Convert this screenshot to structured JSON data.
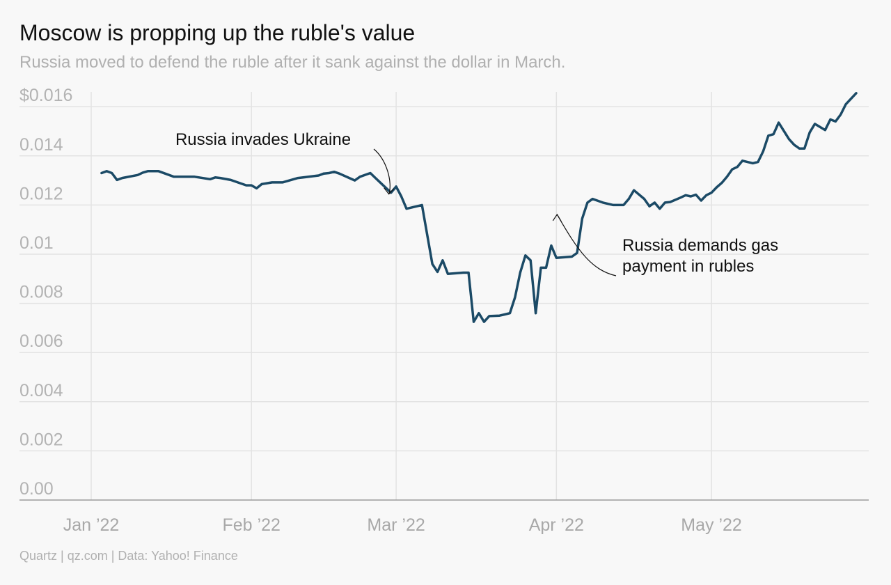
{
  "title": "Moscow is propping up the ruble's value",
  "subtitle": "Russia moved to defend the ruble after it sank against the dollar in March.",
  "footer": "Quartz | qz.com | Data: Yahoo! Finance",
  "colors": {
    "line": "#1b4a66",
    "grid": "#e3e3e3",
    "axis": "#9a9a9a",
    "background": "#f8f8f8"
  },
  "chart_data": {
    "type": "line",
    "title": "Moscow is propping up the ruble's value",
    "subtitle": "Russia moved to defend the ruble after it sank against the dollar in March.",
    "xlabel": "",
    "ylabel": "",
    "ylim": [
      0,
      0.0166
    ],
    "xlim": [
      "2021-12-31",
      "2022-05-30"
    ],
    "grid": true,
    "yticks": [
      {
        "value": 0,
        "label": "0.00"
      },
      {
        "value": 0.002,
        "label": "0.002"
      },
      {
        "value": 0.004,
        "label": "0.004"
      },
      {
        "value": 0.006,
        "label": "0.006"
      },
      {
        "value": 0.008,
        "label": "0.008"
      },
      {
        "value": 0.01,
        "label": "0.01"
      },
      {
        "value": 0.012,
        "label": "0.012"
      },
      {
        "value": 0.014,
        "label": "0.014"
      },
      {
        "value": 0.016,
        "label": "$0.016"
      }
    ],
    "xticks": [
      {
        "date": "2022-01-01",
        "label": "Jan ’22"
      },
      {
        "date": "2022-02-01",
        "label": "Feb ’22"
      },
      {
        "date": "2022-03-01",
        "label": "Mar ’22"
      },
      {
        "date": "2022-04-01",
        "label": "Apr ’22"
      },
      {
        "date": "2022-05-01",
        "label": "May ’22"
      }
    ],
    "series": [
      {
        "values": [
          [
            "2022-01-03",
            0.0133
          ],
          [
            "2022-01-04",
            0.01338
          ],
          [
            "2022-01-05",
            0.0133
          ],
          [
            "2022-01-06",
            0.01302
          ],
          [
            "2022-01-07",
            0.0131
          ],
          [
            "2022-01-10",
            0.01322
          ],
          [
            "2022-01-11",
            0.01332
          ],
          [
            "2022-01-12",
            0.01338
          ],
          [
            "2022-01-13",
            0.01338
          ],
          [
            "2022-01-14",
            0.01338
          ],
          [
            "2022-01-17",
            0.01315
          ],
          [
            "2022-01-19",
            0.01315
          ],
          [
            "2022-01-21",
            0.01315
          ],
          [
            "2022-01-24",
            0.01305
          ],
          [
            "2022-01-25",
            0.01312
          ],
          [
            "2022-01-26",
            0.0131
          ],
          [
            "2022-01-28",
            0.01302
          ],
          [
            "2022-01-31",
            0.0128
          ],
          [
            "2022-02-01",
            0.0128
          ],
          [
            "2022-02-02",
            0.01268
          ],
          [
            "2022-02-03",
            0.01285
          ],
          [
            "2022-02-05",
            0.01292
          ],
          [
            "2022-02-07",
            0.01292
          ],
          [
            "2022-02-08",
            0.01298
          ],
          [
            "2022-02-10",
            0.0131
          ],
          [
            "2022-02-11",
            0.01312
          ],
          [
            "2022-02-14",
            0.0132
          ],
          [
            "2022-02-15",
            0.01328
          ],
          [
            "2022-02-16",
            0.0133
          ],
          [
            "2022-02-17",
            0.01335
          ],
          [
            "2022-02-18",
            0.01328
          ],
          [
            "2022-02-21",
            0.013
          ],
          [
            "2022-02-22",
            0.01315
          ],
          [
            "2022-02-24",
            0.0133
          ],
          [
            "2022-02-25",
            0.0131
          ],
          [
            "2022-02-28",
            0.0125
          ],
          [
            "2022-03-01",
            0.01275
          ],
          [
            "2022-03-02",
            0.01235
          ],
          [
            "2022-03-03",
            0.01185
          ],
          [
            "2022-03-05",
            0.01195
          ],
          [
            "2022-03-06",
            0.012
          ],
          [
            "2022-03-08",
            0.0096
          ],
          [
            "2022-03-09",
            0.00928
          ],
          [
            "2022-03-10",
            0.00975
          ],
          [
            "2022-03-11",
            0.0092
          ],
          [
            "2022-03-14",
            0.00925
          ],
          [
            "2022-03-15",
            0.00925
          ],
          [
            "2022-03-16",
            0.00725
          ],
          [
            "2022-03-17",
            0.0076
          ],
          [
            "2022-03-18",
            0.00725
          ],
          [
            "2022-03-19",
            0.00748
          ],
          [
            "2022-03-21",
            0.0075
          ],
          [
            "2022-03-22",
            0.00755
          ],
          [
            "2022-03-23",
            0.0076
          ],
          [
            "2022-03-24",
            0.00825
          ],
          [
            "2022-03-25",
            0.00925
          ],
          [
            "2022-03-26",
            0.00995
          ],
          [
            "2022-03-27",
            0.00975
          ],
          [
            "2022-03-28",
            0.0076
          ],
          [
            "2022-03-29",
            0.00945
          ],
          [
            "2022-03-30",
            0.00945
          ],
          [
            "2022-03-31",
            0.01035
          ],
          [
            "2022-04-01",
            0.00985
          ],
          [
            "2022-04-04",
            0.0099
          ],
          [
            "2022-04-05",
            0.01005
          ],
          [
            "2022-04-06",
            0.01145
          ],
          [
            "2022-04-07",
            0.0121
          ],
          [
            "2022-04-08",
            0.01225
          ],
          [
            "2022-04-10",
            0.0121
          ],
          [
            "2022-04-12",
            0.012
          ],
          [
            "2022-04-14",
            0.012
          ],
          [
            "2022-04-15",
            0.01225
          ],
          [
            "2022-04-16",
            0.0126
          ],
          [
            "2022-04-18",
            0.01225
          ],
          [
            "2022-04-19",
            0.01195
          ],
          [
            "2022-04-20",
            0.0121
          ],
          [
            "2022-04-21",
            0.01185
          ],
          [
            "2022-04-22",
            0.0121
          ],
          [
            "2022-04-23",
            0.01212
          ],
          [
            "2022-04-25",
            0.0123
          ],
          [
            "2022-04-26",
            0.0124
          ],
          [
            "2022-04-27",
            0.01235
          ],
          [
            "2022-04-28",
            0.01242
          ],
          [
            "2022-04-29",
            0.01218
          ],
          [
            "2022-04-30",
            0.0124
          ],
          [
            "2022-05-01",
            0.0125
          ],
          [
            "2022-05-02",
            0.01272
          ],
          [
            "2022-05-03",
            0.0129
          ],
          [
            "2022-05-04",
            0.01315
          ],
          [
            "2022-05-05",
            0.01345
          ],
          [
            "2022-05-06",
            0.01355
          ],
          [
            "2022-05-07",
            0.0138
          ],
          [
            "2022-05-09",
            0.0137
          ],
          [
            "2022-05-10",
            0.01375
          ],
          [
            "2022-05-11",
            0.01418
          ],
          [
            "2022-05-12",
            0.01482
          ],
          [
            "2022-05-13",
            0.01488
          ],
          [
            "2022-05-14",
            0.01535
          ],
          [
            "2022-05-16",
            0.01468
          ],
          [
            "2022-05-17",
            0.01445
          ],
          [
            "2022-05-18",
            0.0143
          ],
          [
            "2022-05-19",
            0.0143
          ],
          [
            "2022-05-20",
            0.01495
          ],
          [
            "2022-05-21",
            0.0153
          ],
          [
            "2022-05-23",
            0.01505
          ],
          [
            "2022-05-24",
            0.01548
          ],
          [
            "2022-05-25",
            0.0154
          ],
          [
            "2022-05-26",
            0.01568
          ],
          [
            "2022-05-27",
            0.0161
          ],
          [
            "2022-05-29",
            0.01655
          ]
        ]
      }
    ],
    "annotations": [
      {
        "name": "invasion",
        "lines": [
          "Russia invades Ukraine"
        ],
        "date": "2022-02-28",
        "value": 0.0125
      },
      {
        "name": "gas-payment",
        "lines": [
          "Russia demands gas",
          "payment in rubles"
        ],
        "date": "2022-04-01",
        "value": 0.0119
      }
    ]
  }
}
